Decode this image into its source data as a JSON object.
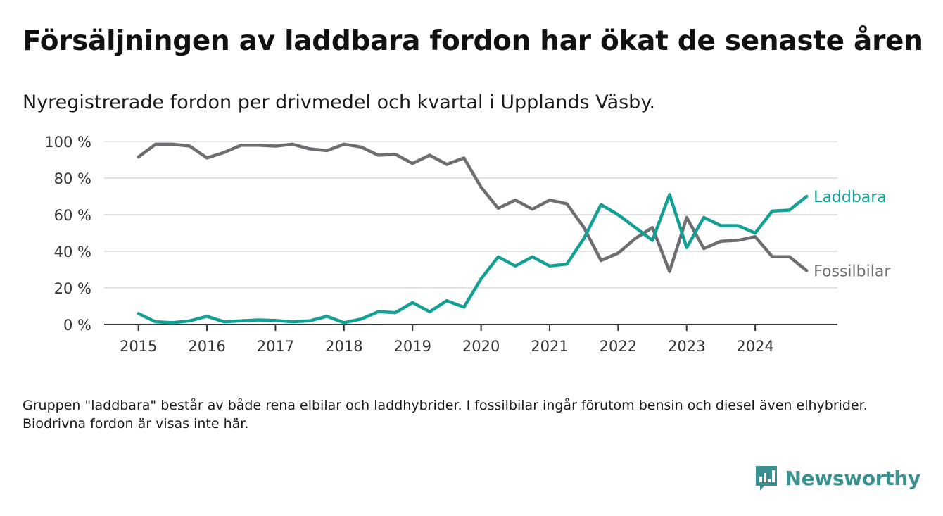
{
  "title": "Försäljningen av laddbara fordon har ökat de senaste åren",
  "subtitle": "Nyregistrerade fordon per drivmedel och kvartal i Upplands Väsby.",
  "footnote": "Gruppen \"laddbara\" består av både rena elbilar och laddhybrider. I fossilbilar ingår förutom bensin och diesel även elhybrider. Biodrivna fordon är visas inte här.",
  "brand": {
    "name": "Newsworthy",
    "icon": "newsworthy-logo-icon",
    "color": "#3a8f8f"
  },
  "chart_data": {
    "type": "line",
    "title": "Nyregistrerade fordon per drivmedel och kvartal i Upplands Väsby.",
    "xlabel": "",
    "ylabel": "",
    "ylim": [
      0,
      100
    ],
    "xlim": [
      2014.5,
      2025.2
    ],
    "y_ticks": [
      0,
      20,
      40,
      60,
      80,
      100
    ],
    "y_tick_labels": [
      "0 %",
      "20 %",
      "40 %",
      "60 %",
      "80 %",
      "100 %"
    ],
    "x_ticks": [
      2015,
      2016,
      2017,
      2018,
      2019,
      2020,
      2021,
      2022,
      2023,
      2024
    ],
    "x_tick_labels": [
      "2015",
      "2016",
      "2017",
      "2018",
      "2019",
      "2020",
      "2021",
      "2022",
      "2023",
      "2024"
    ],
    "grid": true,
    "legend": "inline-right",
    "x": [
      2015,
      2015.25,
      2015.5,
      2015.75,
      2016,
      2016.25,
      2016.5,
      2016.75,
      2017,
      2017.25,
      2017.5,
      2017.75,
      2018,
      2018.25,
      2018.5,
      2018.75,
      2019,
      2019.25,
      2019.5,
      2019.75,
      2020,
      2020.25,
      2020.5,
      2020.75,
      2021,
      2021.25,
      2021.5,
      2021.75,
      2022,
      2022.25,
      2022.5,
      2022.75,
      2023,
      2023.25,
      2023.5,
      2023.75,
      2024,
      2024.25,
      2024.5,
      2024.75
    ],
    "series": [
      {
        "name": "Laddbara",
        "color": "#12a095",
        "values": [
          6,
          1.5,
          1,
          2,
          4.5,
          1.5,
          2,
          2.5,
          2.2,
          1.5,
          2,
          4.5,
          1,
          3,
          7,
          6.5,
          12,
          7,
          13,
          9.5,
          25,
          37,
          32,
          37,
          32,
          33,
          47,
          65.5,
          60,
          53,
          46,
          71,
          42,
          58.5,
          54,
          54,
          50,
          62,
          62.5,
          70
        ]
      },
      {
        "name": "Fossilbilar",
        "color": "#6e6d72",
        "values": [
          91.5,
          98.5,
          98.5,
          97.5,
          91,
          94,
          98,
          98,
          97.5,
          98.5,
          96,
          95,
          98.5,
          97,
          92.5,
          93,
          88,
          92.5,
          87.5,
          91,
          75,
          63.5,
          68,
          63,
          68,
          66,
          53,
          35,
          39,
          47,
          53,
          29,
          58.5,
          41.5,
          45.5,
          46,
          48,
          37,
          37,
          29.5
        ]
      }
    ]
  }
}
